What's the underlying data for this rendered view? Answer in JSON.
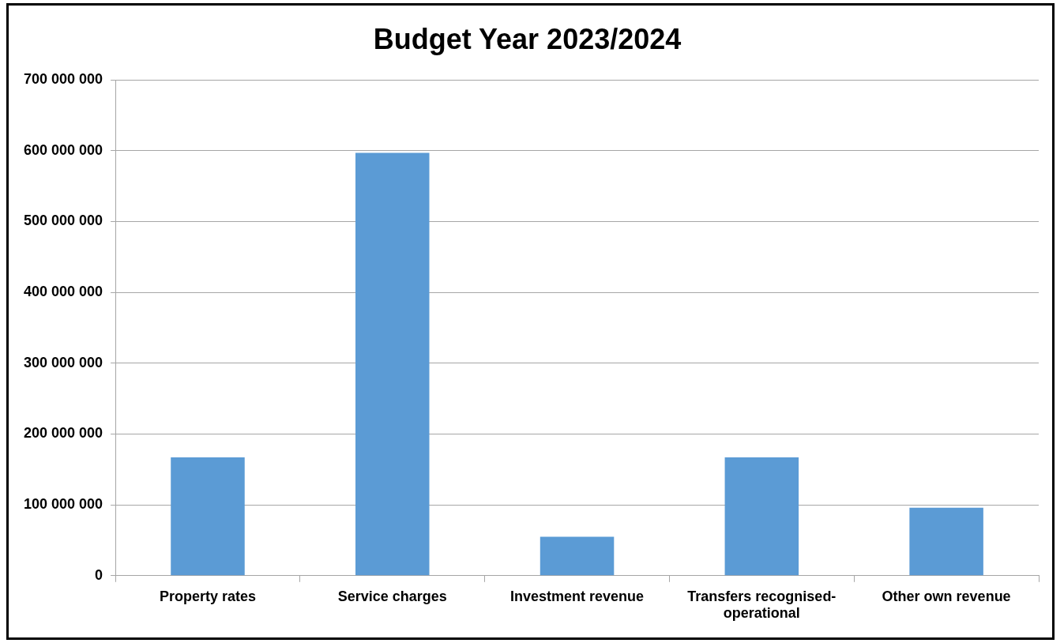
{
  "chart_data": {
    "type": "bar",
    "title": "Budget Year 2023/2024",
    "categories": [
      "Property rates",
      "Service charges",
      "Investment revenue",
      "Transfers recognised-operational",
      "Other own revenue"
    ],
    "values": [
      167000000,
      597000000,
      55000000,
      167000000,
      96000000
    ],
    "color": "#5b9bd5",
    "ylim": [
      0,
      700000000
    ],
    "yticks": [
      {
        "value": 0,
        "label": "0"
      },
      {
        "value": 100000000,
        "label": "100 000 000"
      },
      {
        "value": 200000000,
        "label": "200 000 000"
      },
      {
        "value": 300000000,
        "label": "300 000 000"
      },
      {
        "value": 400000000,
        "label": "400 000 000"
      },
      {
        "value": 500000000,
        "label": "500 000 000"
      },
      {
        "value": 600000000,
        "label": "600 000 000"
      },
      {
        "value": 700000000,
        "label": "700 000 000"
      }
    ],
    "grid": "y",
    "legend": false
  }
}
